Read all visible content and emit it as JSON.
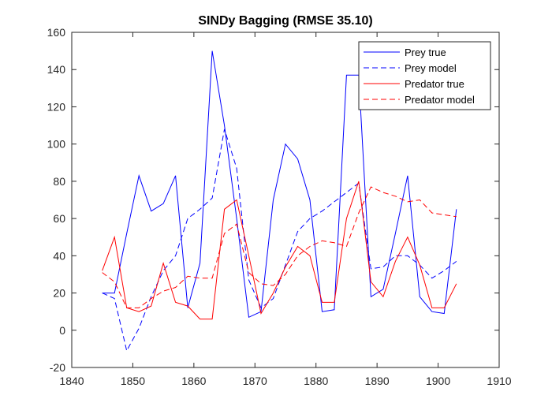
{
  "chart_data": {
    "type": "line",
    "title": "SINDy Bagging (RMSE 35.10)",
    "xlabel": "",
    "ylabel": "",
    "xlim": [
      1840,
      1910
    ],
    "ylim": [
      -20,
      160
    ],
    "xticks": [
      1840,
      1850,
      1860,
      1870,
      1880,
      1890,
      1900,
      1910
    ],
    "yticks": [
      -20,
      0,
      20,
      40,
      60,
      80,
      100,
      120,
      140,
      160
    ],
    "grid": false,
    "legend_position": "top-right",
    "series": [
      {
        "name": "Prey true",
        "color": "#0000ff",
        "style": "solid",
        "x": [
          1845,
          1847,
          1849,
          1851,
          1853,
          1855,
          1857,
          1859,
          1861,
          1863,
          1865,
          1867,
          1869,
          1871,
          1873,
          1875,
          1877,
          1879,
          1881,
          1883,
          1885,
          1887,
          1889,
          1891,
          1893,
          1895,
          1897,
          1899,
          1901,
          1903
        ],
        "values": [
          20,
          20,
          52,
          83,
          64,
          68,
          83,
          12,
          36,
          150,
          110,
          60,
          7,
          10,
          70,
          100,
          92,
          70,
          10,
          11,
          137,
          137,
          18,
          22,
          52,
          83,
          18,
          10,
          9,
          65
        ]
      },
      {
        "name": "Prey model",
        "color": "#0000ff",
        "style": "dashed",
        "x": [
          1845,
          1847,
          1849,
          1851,
          1853,
          1855,
          1857,
          1859,
          1861,
          1863,
          1865,
          1867,
          1869,
          1871,
          1873,
          1875,
          1877,
          1879,
          1881,
          1883,
          1885,
          1887,
          1889,
          1891,
          1893,
          1895,
          1897,
          1899,
          1901,
          1903
        ],
        "values": [
          20,
          17,
          -11,
          1,
          18,
          32,
          40,
          60,
          65,
          71,
          108,
          87,
          27,
          12,
          17,
          35,
          53,
          60,
          64,
          69,
          74,
          79,
          33,
          34,
          40,
          40,
          35,
          28,
          32,
          37
        ]
      },
      {
        "name": "Predator true",
        "color": "#ff0000",
        "style": "solid",
        "x": [
          1845,
          1847,
          1849,
          1851,
          1853,
          1855,
          1857,
          1859,
          1861,
          1863,
          1865,
          1867,
          1869,
          1871,
          1873,
          1875,
          1877,
          1879,
          1881,
          1883,
          1885,
          1887,
          1889,
          1891,
          1893,
          1895,
          1897,
          1899,
          1901,
          1903
        ],
        "values": [
          32,
          50,
          12,
          10,
          13,
          36,
          15,
          13,
          6,
          6,
          65,
          70,
          40,
          9,
          20,
          34,
          45,
          40,
          15,
          15,
          60,
          80,
          26,
          18,
          37,
          50,
          35,
          12,
          12,
          25
        ]
      },
      {
        "name": "Predator model",
        "color": "#ff0000",
        "style": "dashed",
        "x": [
          1845,
          1847,
          1849,
          1851,
          1853,
          1855,
          1857,
          1859,
          1861,
          1863,
          1865,
          1867,
          1869,
          1871,
          1873,
          1875,
          1877,
          1879,
          1881,
          1883,
          1885,
          1887,
          1889,
          1891,
          1893,
          1895,
          1897,
          1899,
          1901,
          1903
        ],
        "values": [
          31,
          26,
          12,
          12,
          17,
          21,
          23,
          29,
          28,
          28,
          52,
          57,
          31,
          25,
          24,
          30,
          40,
          45,
          48,
          47,
          45,
          63,
          77,
          74,
          72,
          69,
          70,
          63,
          62,
          61
        ]
      }
    ]
  }
}
